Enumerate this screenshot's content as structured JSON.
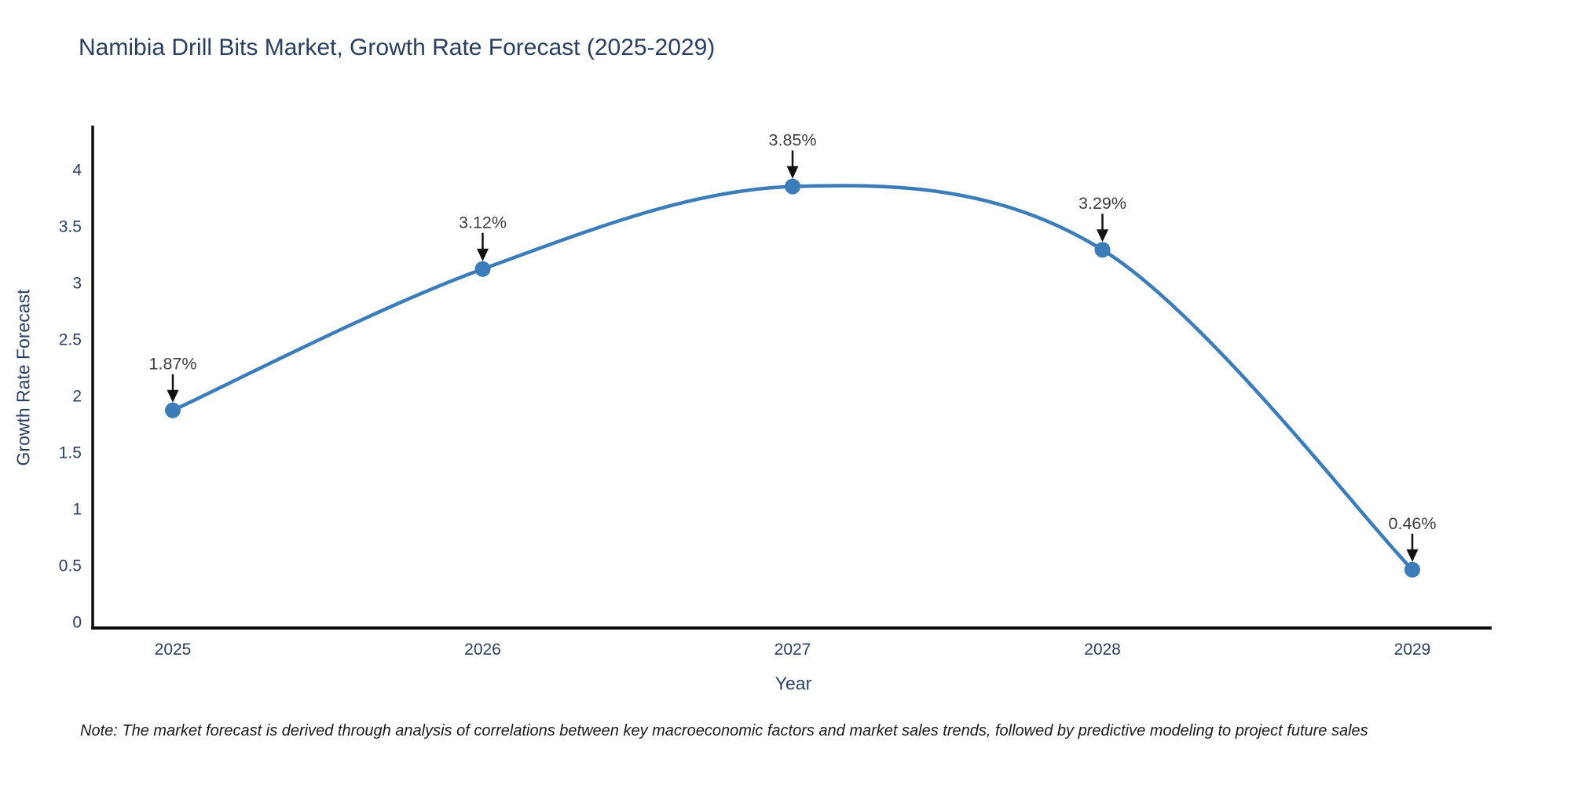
{
  "page": {
    "title": "Namibia Drill Bits Market, Growth Rate Forecast (2025-2029)",
    "note": "Note: The market forecast is derived through analysis of correlations between key macroeconomic factors and market sales trends, followed by predictive modeling to project future sales"
  },
  "chart_data": {
    "type": "line",
    "line_shape": "spline",
    "title": "Namibia Drill Bits Market, Growth Rate Forecast (2025-2029)",
    "xlabel": "Year",
    "ylabel": "Growth Rate Forecast",
    "x": [
      2025,
      2026,
      2027,
      2028,
      2029
    ],
    "y": [
      1.87,
      3.12,
      3.85,
      3.29,
      0.46
    ],
    "point_labels": [
      "1.87%",
      "3.12%",
      "3.85%",
      "3.29%",
      "0.46%"
    ],
    "xticks": [
      "2025",
      "2026",
      "2027",
      "2028",
      "2029"
    ],
    "yticks": [
      0,
      0.5,
      1,
      1.5,
      2,
      2.5,
      3,
      3.5,
      4
    ],
    "xlim": [
      2024.74,
      2029.26
    ],
    "ylim": [
      0,
      4.39
    ],
    "grid": false,
    "legend": "none",
    "annotation_style": "value label with downward black arrow to each marker",
    "colors": {
      "line": "#3c7cb8",
      "marker": "#3c7cb8",
      "arrow": "#111111",
      "axis_line": "#0d0d0d",
      "title_text": "#2a3f5f",
      "tick_text": "#2a3f5f",
      "axis_title_text": "#2a3f5f",
      "annotation_text": "#3d3d3d",
      "note_text": "#1a1a1a",
      "background": "#ffffff"
    }
  }
}
